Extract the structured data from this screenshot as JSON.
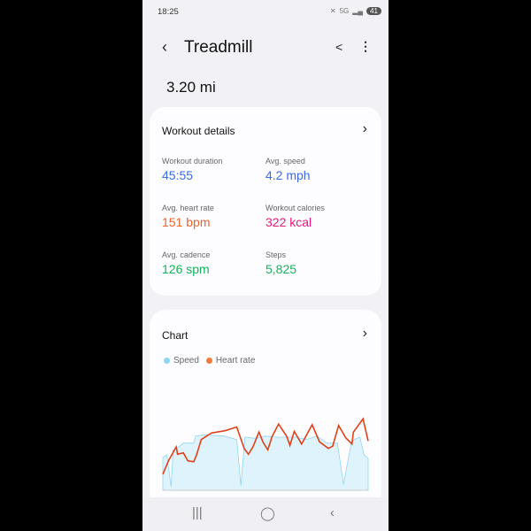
{
  "status": {
    "time": "18:25",
    "battery": "41",
    "network": "5G"
  },
  "header": {
    "title": "Treadmill",
    "back_icon": "chevron-left-icon",
    "share_icon": "share-icon",
    "more_icon": "more-vertical-icon"
  },
  "distance": "3.20 mi",
  "details": {
    "title": "Workout details",
    "items": [
      {
        "label": "Workout duration",
        "value": "45:55",
        "color": "#3a6be6"
      },
      {
        "label": "Avg. speed",
        "value": "4.2 mph",
        "color": "#3a6be6"
      },
      {
        "label": "Avg. heart rate",
        "value": "151 bpm",
        "color": "#f0622a"
      },
      {
        "label": "Workout calories",
        "value": "322 kcal",
        "color": "#e8157d"
      },
      {
        "label": "Avg. cadence",
        "value": "126 spm",
        "color": "#15b35a"
      },
      {
        "label": "Steps",
        "value": "5,825",
        "color": "#15b35a"
      }
    ]
  },
  "chart": {
    "title": "Chart",
    "legend": [
      {
        "name": "Speed",
        "color": "#8fd6f5"
      },
      {
        "name": "Heart rate",
        "color": "#f47a3a"
      }
    ]
  },
  "chart_data": {
    "type": "line",
    "series": [
      {
        "name": "Speed",
        "unit": "mph",
        "x": [
          0,
          0.02,
          0.04,
          0.05,
          0.08,
          0.1,
          0.15,
          0.16,
          0.2,
          0.3,
          0.36,
          0.38,
          0.4,
          0.45,
          0.5,
          0.55,
          0.6,
          0.65,
          0.7,
          0.75,
          0.8,
          0.85,
          0.88,
          0.92,
          0.96,
          0.98,
          1
        ],
        "values": [
          2.8,
          3.0,
          0.3,
          3.4,
          3.7,
          4.0,
          4.0,
          4.6,
          4.7,
          4.6,
          4.3,
          0.4,
          4.5,
          4.4,
          4.6,
          4.5,
          4.5,
          4.5,
          4.3,
          4.6,
          4.0,
          4.0,
          0.5,
          4.2,
          4.5,
          3.0,
          2.7
        ]
      },
      {
        "name": "Heart rate",
        "unit": "bpm",
        "x": [
          0,
          0.029,
          0.065,
          0.072,
          0.1,
          0.122,
          0.151,
          0.165,
          0.187,
          0.237,
          0.302,
          0.36,
          0.396,
          0.417,
          0.439,
          0.468,
          0.489,
          0.511,
          0.532,
          0.564,
          0.604,
          0.619,
          0.64,
          0.676,
          0.727,
          0.763,
          0.806,
          0.827,
          0.856,
          0.892,
          0.921,
          0.928,
          0.975,
          1
        ],
        "values": [
          101,
          120,
          138,
          128,
          130,
          119,
          118,
          128,
          148,
          157,
          160,
          165,
          136,
          128,
          138,
          158,
          144,
          134,
          152,
          169,
          152,
          140,
          159,
          142,
          168,
          145,
          136,
          139,
          167,
          150,
          142,
          158,
          176,
          146
        ]
      }
    ]
  }
}
